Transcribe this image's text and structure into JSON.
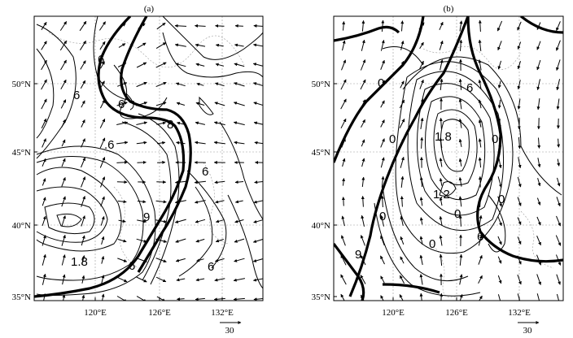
{
  "panels": [
    {
      "id": "a",
      "label": "(a)",
      "lat_ticks": [
        "50°N",
        "45°N",
        "40°N",
        "35°N"
      ],
      "lon_ticks": [
        "120°E",
        "126°E",
        "132°E"
      ],
      "contour_labels": [
        "6",
        "6",
        "8",
        "6",
        ".6",
        "6",
        "9",
        "1.8",
        "6",
        "6"
      ],
      "vector_reference": "30"
    },
    {
      "id": "b",
      "label": "(b)",
      "lat_ticks": [
        "50°N",
        "45°N",
        "40°N",
        "35°N"
      ],
      "lon_ticks": [
        "120°E",
        "126°E",
        "132°E"
      ],
      "contour_labels": [
        "0",
        "0",
        "9",
        "6",
        "0",
        "1.8",
        "1.2",
        "0",
        "0",
        "6",
        "0",
        "0"
      ],
      "vector_reference": "30"
    }
  ],
  "colors": {
    "contour": "#000000",
    "vector": "#000000",
    "background": "#ffffff",
    "grid": "#999999"
  }
}
